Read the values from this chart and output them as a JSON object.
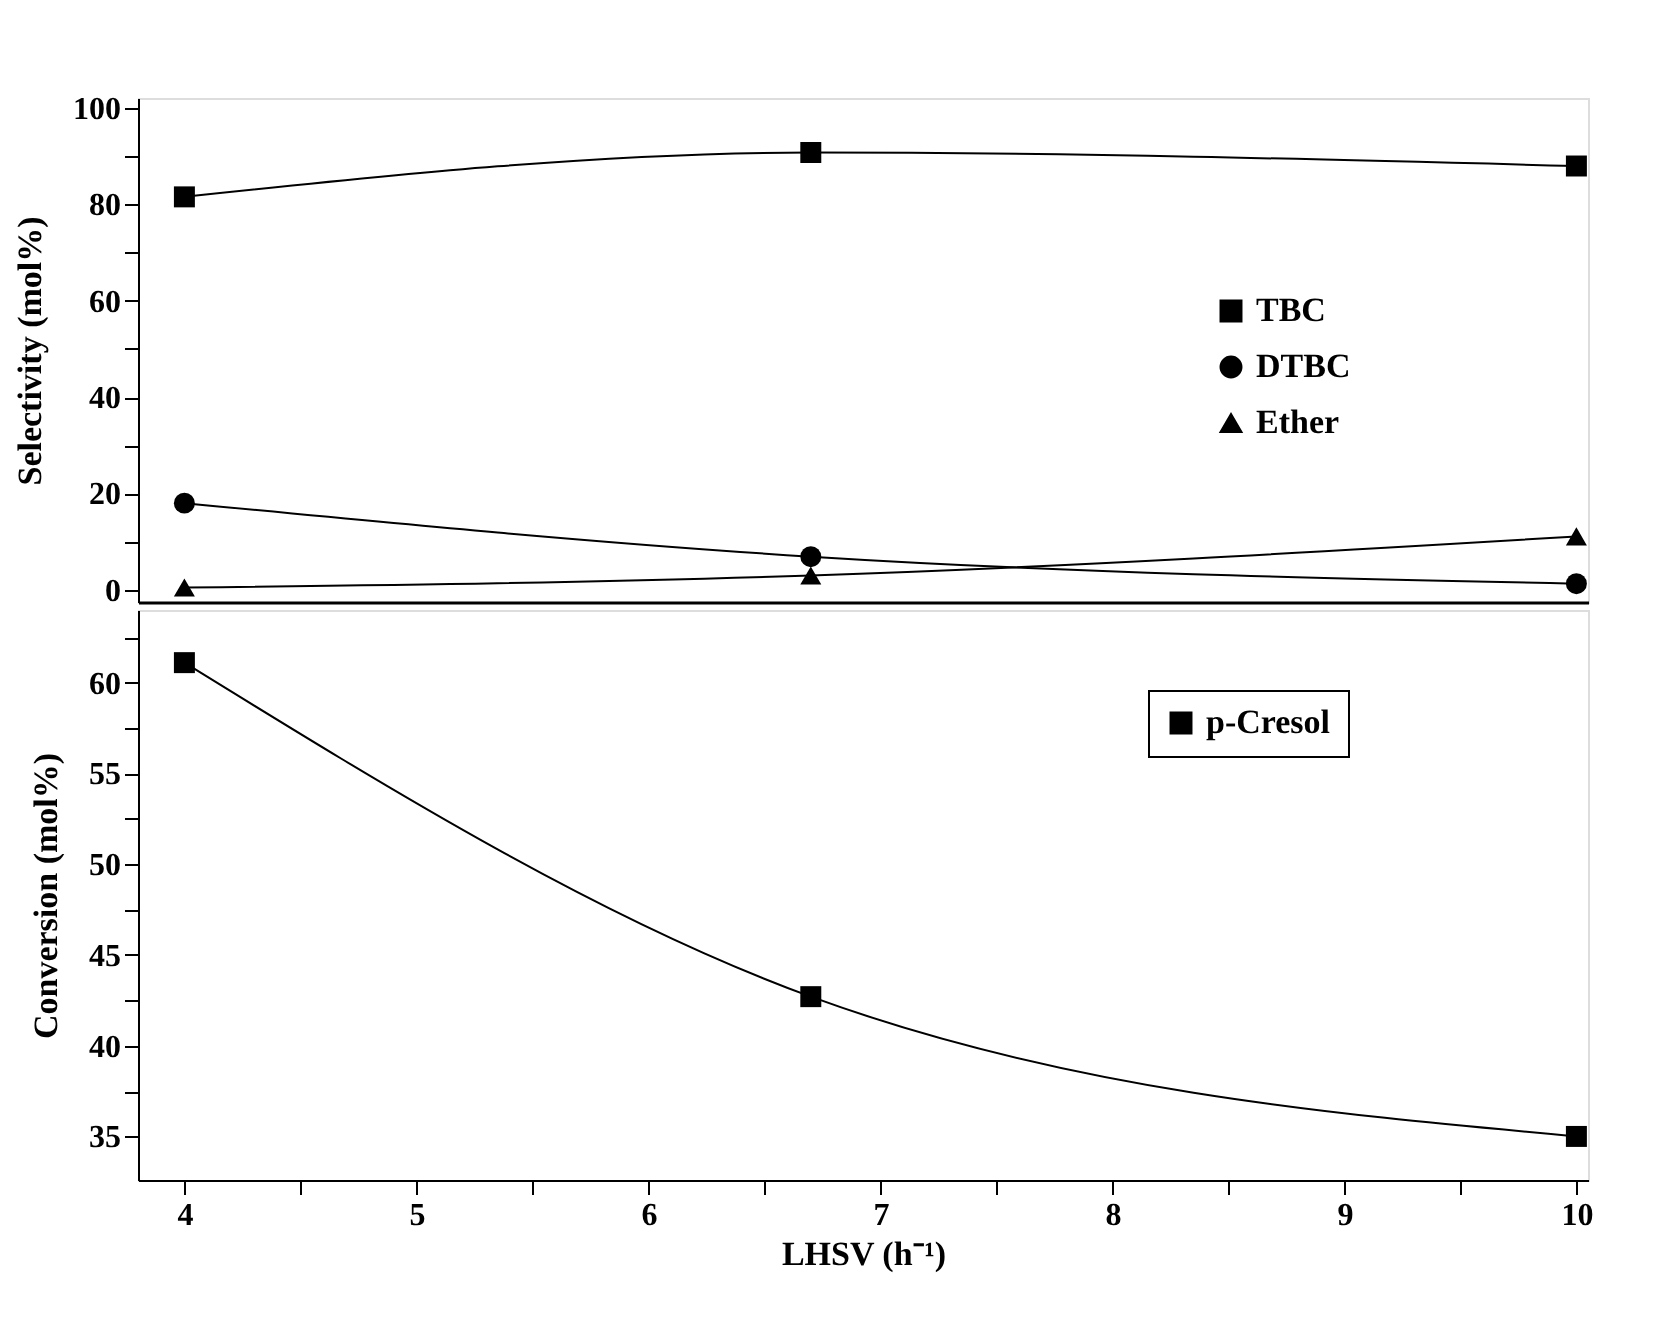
{
  "chart_data": [
    {
      "type": "line",
      "ylabel": "Selectivity (mol%)",
      "xlim": [
        3.8,
        10.05
      ],
      "ylim": [
        -2.5,
        102
      ],
      "yticks": [
        0,
        {
          "value": 10,
          "label": null
        },
        20,
        {
          "value": 30,
          "label": null
        },
        40,
        {
          "value": 50,
          "label": null
        },
        60,
        {
          "value": 70,
          "label": null
        },
        80,
        {
          "value": 90,
          "label": null
        },
        100
      ],
      "tick_labels": "y",
      "legend": "right",
      "grid": false,
      "line_style": "solid",
      "series": [
        {
          "name": "TBC",
          "color": "#000000",
          "marker": "square",
          "x": [
            4,
            6.7,
            10
          ],
          "values": [
            81.5,
            90.7,
            87.9
          ]
        },
        {
          "name": "DTBC",
          "color": "#000000",
          "marker": "circle",
          "x": [
            4,
            6.7,
            10
          ],
          "values": [
            18.0,
            6.9,
            1.3
          ]
        },
        {
          "name": "Ether",
          "color": "#000000",
          "marker": "triangle",
          "x": [
            4,
            6.7,
            10
          ],
          "values": [
            0.5,
            3.0,
            11.1
          ]
        }
      ]
    },
    {
      "type": "line",
      "xlabel": "LHSV (h⁻¹)",
      "ylabel": "Conversion (mol%)",
      "xlim": [
        3.8,
        10.05
      ],
      "ylim": [
        32.6,
        64
      ],
      "xticks": [
        4,
        {
          "value": 4.5,
          "label": null
        },
        5,
        {
          "value": 5.5,
          "label": null
        },
        6,
        {
          "value": 6.5,
          "label": null
        },
        7,
        {
          "value": 7.5,
          "label": null
        },
        8,
        {
          "value": 8.5,
          "label": null
        },
        9,
        {
          "value": 9.5,
          "label": null
        },
        10
      ],
      "yticks": [
        35,
        {
          "value": 37.5,
          "label": null
        },
        40,
        {
          "value": 42.5,
          "label": null
        },
        45,
        {
          "value": 47.5,
          "label": null
        },
        50,
        {
          "value": 52.5,
          "label": null
        },
        55,
        {
          "value": 57.5,
          "label": null
        },
        60,
        {
          "value": 62.5,
          "label": null
        }
      ],
      "legend": "top right",
      "grid": false,
      "line_style": "solid",
      "series": [
        {
          "name": "p-Cresol",
          "color": "#000000",
          "marker": "square",
          "x": [
            4,
            6.7,
            10
          ],
          "values": [
            61.1,
            42.7,
            35.0
          ]
        }
      ]
    }
  ]
}
